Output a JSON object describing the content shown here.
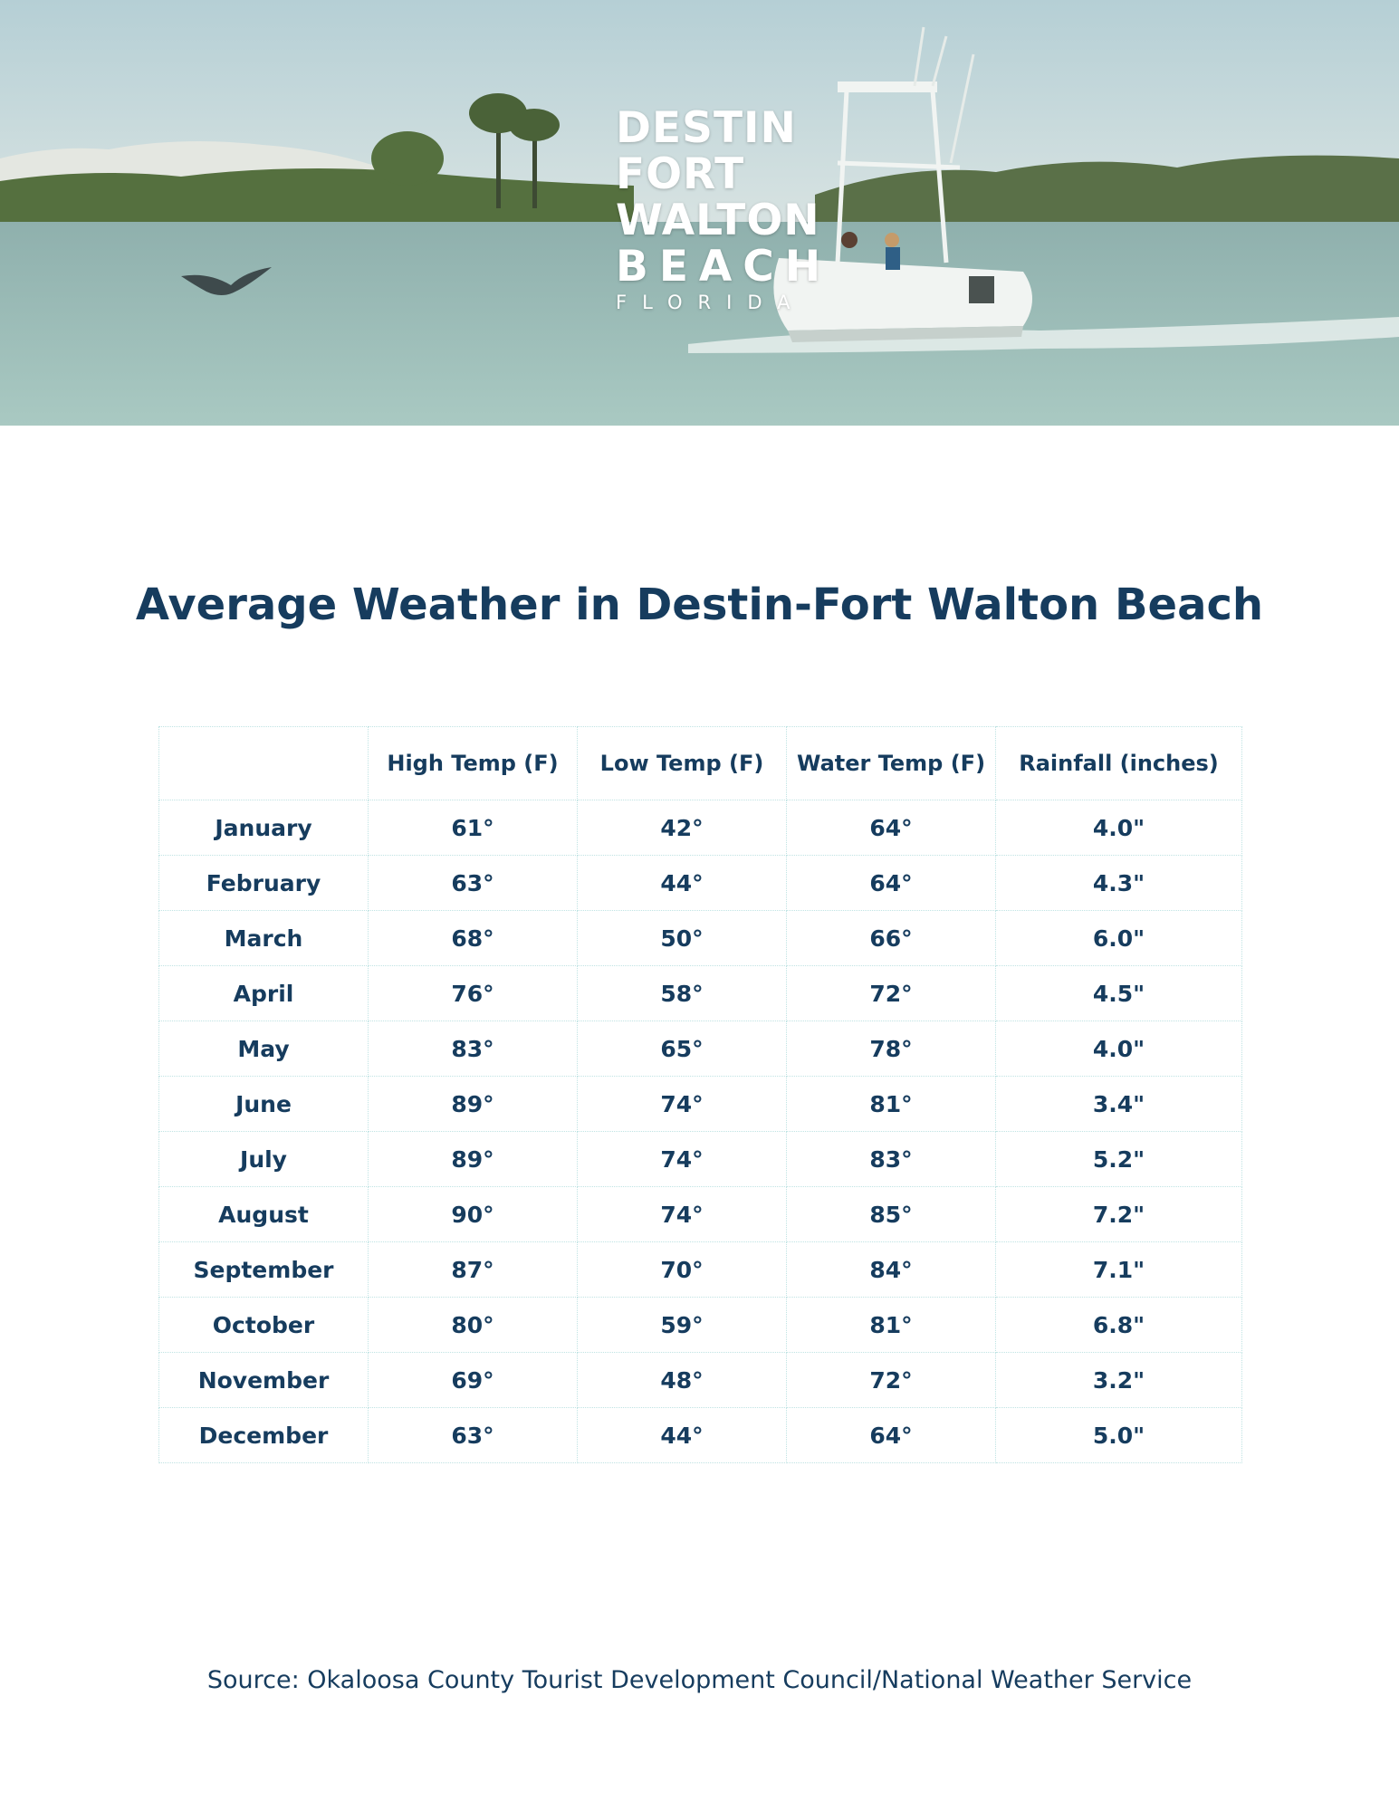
{
  "header": {
    "logo": {
      "line1": "DESTIN",
      "line2": "FORT",
      "line3": "WALTON",
      "line4": "BEACH",
      "line5": "FLORIDA"
    },
    "image_colors": {
      "sky": "#c9d9dc",
      "water": "#9fbfbb",
      "dune": "#e6e9e4",
      "vegetation": "#4f6a3e"
    }
  },
  "title": "Average Weather in Destin-Fort Walton Beach",
  "table": {
    "headers": [
      "",
      "High Temp (F)",
      "Low Temp (F)",
      "Water Temp (F)",
      "Rainfall (inches)"
    ],
    "rows": [
      [
        "January",
        "61°",
        "42°",
        "64°",
        "4.0\""
      ],
      [
        "February",
        "63°",
        "44°",
        "64°",
        "4.3\""
      ],
      [
        "March",
        "68°",
        "50°",
        "66°",
        "6.0\""
      ],
      [
        "April",
        "76°",
        "58°",
        "72°",
        "4.5\""
      ],
      [
        "May",
        "83°",
        "65°",
        "78°",
        "4.0\""
      ],
      [
        "June",
        "89°",
        "74°",
        "81°",
        "3.4\""
      ],
      [
        "July",
        "89°",
        "74°",
        "83°",
        "5.2\""
      ],
      [
        "August",
        "90°",
        "74°",
        "85°",
        "7.2\""
      ],
      [
        "September",
        "87°",
        "70°",
        "84°",
        "7.1\""
      ],
      [
        "October",
        "80°",
        "59°",
        "81°",
        "6.8\""
      ],
      [
        "November",
        "69°",
        "48°",
        "72°",
        "3.2\""
      ],
      [
        "December",
        "63°",
        "44°",
        "64°",
        "5.0\""
      ]
    ]
  },
  "source": "Source: Okaloosa County Tourist Development Council/National Weather Service",
  "colors": {
    "text": "#163c5e",
    "table_border": "#bfe3e3",
    "background": "#ffffff"
  }
}
